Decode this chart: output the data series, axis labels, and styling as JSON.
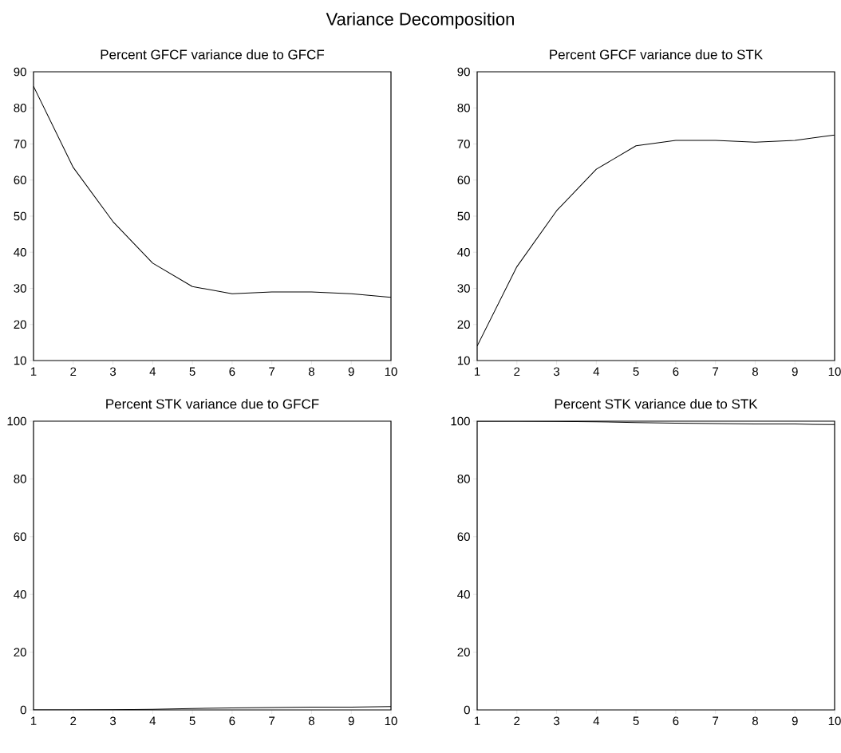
{
  "chart_data": [
    {
      "type": "line",
      "title": "Percent GFCF variance due to GFCF",
      "annotations": [
        "Variance Decomposition"
      ],
      "x": [
        1,
        2,
        3,
        4,
        5,
        6,
        7,
        8,
        9,
        10
      ],
      "values": [
        86,
        63.5,
        48.5,
        37,
        30.5,
        28.5,
        29,
        29,
        28.5,
        27.5
      ],
      "color": "#000000",
      "xlim": [
        1,
        10
      ],
      "ylim": [
        10,
        90
      ],
      "xticks": [
        1,
        2,
        3,
        4,
        5,
        6,
        7,
        8,
        9,
        10
      ],
      "yticks": [
        10,
        20,
        30,
        40,
        50,
        60,
        70,
        80,
        90
      ]
    },
    {
      "type": "line",
      "title": "Percent GFCF variance due to STK",
      "x": [
        1,
        2,
        3,
        4,
        5,
        6,
        7,
        8,
        9,
        10
      ],
      "values": [
        14,
        36,
        51.5,
        63,
        69.5,
        71,
        71,
        70.5,
        71,
        72.5
      ],
      "color": "#000000",
      "xlim": [
        1,
        10
      ],
      "ylim": [
        10,
        90
      ],
      "xticks": [
        1,
        2,
        3,
        4,
        5,
        6,
        7,
        8,
        9,
        10
      ],
      "yticks": [
        10,
        20,
        30,
        40,
        50,
        60,
        70,
        80,
        90
      ]
    },
    {
      "type": "line",
      "title": "Percent STK variance due to GFCF",
      "x": [
        1,
        2,
        3,
        4,
        5,
        6,
        7,
        8,
        9,
        10
      ],
      "values": [
        0,
        0,
        0.1,
        0.2,
        0.5,
        0.7,
        0.8,
        1,
        1,
        1.2
      ],
      "color": "#000000",
      "xlim": [
        1,
        10
      ],
      "ylim": [
        0,
        100
      ],
      "xticks": [
        1,
        2,
        3,
        4,
        5,
        6,
        7,
        8,
        9,
        10
      ],
      "yticks": [
        0,
        20,
        40,
        60,
        80,
        100
      ]
    },
    {
      "type": "line",
      "title": "Percent STK variance due to STK",
      "x": [
        1,
        2,
        3,
        4,
        5,
        6,
        7,
        8,
        9,
        10
      ],
      "values": [
        100,
        100,
        99.9,
        99.8,
        99.5,
        99.3,
        99.2,
        99,
        99,
        98.8
      ],
      "color": "#000000",
      "xlim": [
        1,
        10
      ],
      "ylim": [
        0,
        100
      ],
      "xticks": [
        1,
        2,
        3,
        4,
        5,
        6,
        7,
        8,
        9,
        10
      ],
      "yticks": [
        0,
        20,
        40,
        60,
        80,
        100
      ]
    }
  ]
}
